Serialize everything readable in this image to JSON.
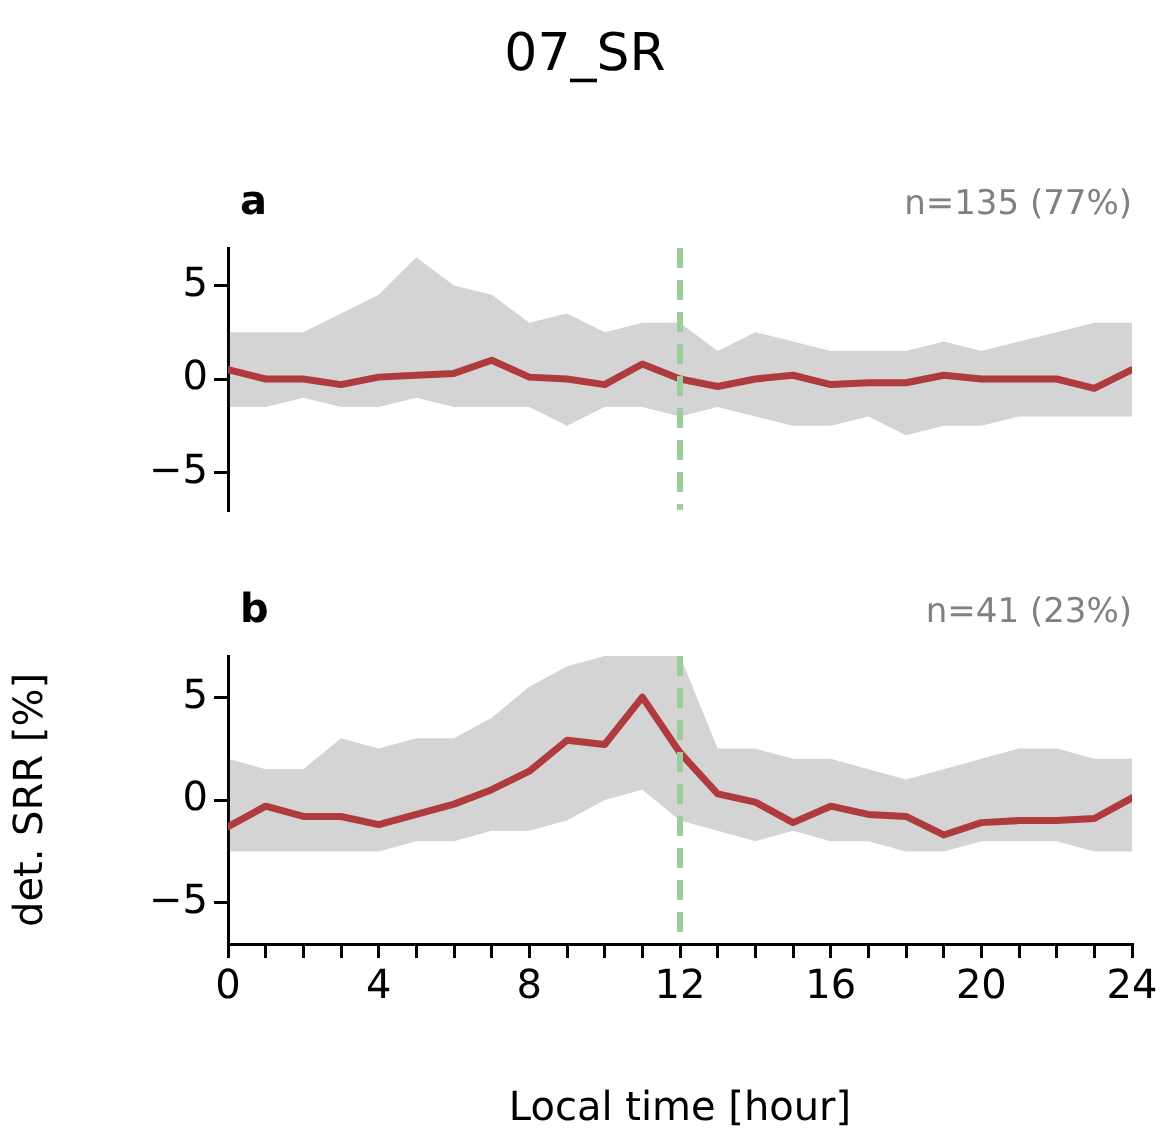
{
  "chart_data": [
    {
      "type": "line",
      "title": "07_SR",
      "annotations": [
        "a",
        "n=135 (77%)"
      ],
      "x": [
        0,
        1,
        2,
        3,
        4,
        5,
        6,
        7,
        8,
        9,
        10,
        11,
        12,
        13,
        14,
        15,
        16,
        17,
        18,
        19,
        20,
        21,
        22,
        23,
        24
      ],
      "series": [
        {
          "color": "#d03b3f",
          "values": [
            0.5,
            0,
            0,
            -0.3,
            0.1,
            0.2,
            0.3,
            1.0,
            0.1,
            0,
            -0.3,
            0.8,
            0,
            -0.4,
            0,
            0.2,
            -0.3,
            -0.2,
            -0.2,
            0.2,
            0,
            0,
            0,
            -0.5,
            0.5
          ],
          "lower": [
            -1.5,
            -1.5,
            -1,
            -1.5,
            -1.5,
            -1,
            -1.5,
            -1.5,
            -1.5,
            -2.5,
            -1.5,
            -1.5,
            -2,
            -1.5,
            -2,
            -2.5,
            -2.5,
            -2,
            -3,
            -2.5,
            -2.5,
            -2,
            -2,
            -2,
            -2
          ],
          "upper": [
            2.5,
            2.5,
            2.5,
            3.5,
            4.5,
            6.5,
            5,
            4.5,
            3,
            3.5,
            2.5,
            3,
            3,
            1.5,
            2.5,
            2,
            1.5,
            1.5,
            1.5,
            2,
            1.5,
            2,
            2.5,
            3,
            3
          ]
        }
      ],
      "xlim": [
        0,
        24
      ],
      "ylim": [
        -7,
        7
      ],
      "yticks": [
        -5,
        0,
        5
      ],
      "tick_labels": "y",
      "ref_lines": [
        {
          "axis": "x",
          "value": 12,
          "color": "#9dcc9d",
          "line_style": "dashed"
        }
      ],
      "grid": false,
      "legend": false,
      "marker": "none",
      "line_style": "solid"
    },
    {
      "type": "line",
      "annotations": [
        "b",
        "n=41 (23%)"
      ],
      "xlabel": "Local time [hour]",
      "ylabel": "det. SRR [%]",
      "x": [
        0,
        1,
        2,
        3,
        4,
        5,
        6,
        7,
        8,
        9,
        10,
        11,
        12,
        13,
        14,
        15,
        16,
        17,
        18,
        19,
        20,
        21,
        22,
        23,
        24
      ],
      "series": [
        {
          "color": "#d03b3f",
          "values": [
            -1.3,
            -0.3,
            -0.8,
            -0.8,
            -1.2,
            -0.7,
            -0.2,
            0.5,
            1.4,
            2.9,
            2.7,
            5.0,
            2.3,
            0.3,
            -0.1,
            -1.1,
            -0.3,
            -0.7,
            -0.8,
            -1.7,
            -1.1,
            -1.0,
            -1.0,
            -0.9,
            0.1
          ],
          "lower": [
            -2.5,
            -2.5,
            -2.5,
            -2.5,
            -2.5,
            -2,
            -2,
            -1.5,
            -1.5,
            -1,
            0,
            0.5,
            -1,
            -1.5,
            -2,
            -1.5,
            -2,
            -2,
            -2.5,
            -2.5,
            -2,
            -2,
            -2,
            -2.5,
            -2.5
          ],
          "upper": [
            2,
            1.5,
            1.5,
            3,
            2.5,
            3,
            3,
            4,
            5.5,
            6.5,
            7,
            7,
            7,
            2.5,
            2.5,
            2,
            2,
            1.5,
            1,
            1.5,
            2,
            2.5,
            2.5,
            2,
            2
          ]
        }
      ],
      "xlim": [
        0,
        24
      ],
      "ylim": [
        -7,
        7
      ],
      "yticks": [
        -5,
        0,
        5
      ],
      "xticks": [
        0,
        {
          "value": 1,
          "label": null
        },
        {
          "value": 2,
          "label": null
        },
        {
          "value": 3,
          "label": null
        },
        4,
        {
          "value": 5,
          "label": null
        },
        {
          "value": 6,
          "label": null
        },
        {
          "value": 7,
          "label": null
        },
        8,
        {
          "value": 9,
          "label": null
        },
        {
          "value": 10,
          "label": null
        },
        {
          "value": 11,
          "label": null
        },
        12,
        {
          "value": 13,
          "label": null
        },
        {
          "value": 14,
          "label": null
        },
        {
          "value": 15,
          "label": null
        },
        16,
        {
          "value": 17,
          "label": null
        },
        {
          "value": 18,
          "label": null
        },
        {
          "value": 19,
          "label": null
        },
        20,
        {
          "value": 21,
          "label": null
        },
        {
          "value": 22,
          "label": null
        },
        {
          "value": 23,
          "label": null
        },
        24
      ],
      "ref_lines": [
        {
          "axis": "x",
          "value": 12,
          "color": "#9dcc9d",
          "line_style": "dashed"
        }
      ],
      "grid": false,
      "legend": false,
      "marker": "none",
      "line_style": "solid"
    }
  ]
}
